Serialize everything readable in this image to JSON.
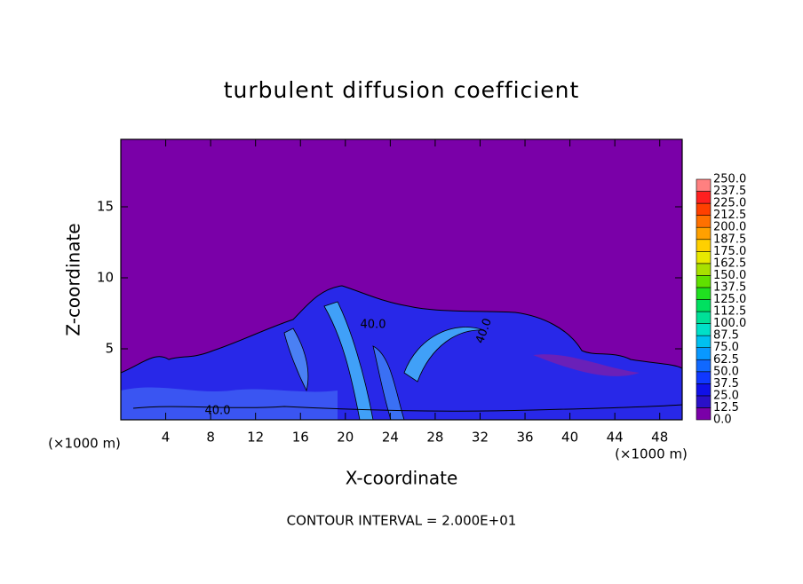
{
  "chart_data": {
    "type": "contour",
    "title": "turbulent diffusion coefficient",
    "xlabel": "X-coordinate",
    "ylabel": "Z-coordinate",
    "x_unit": "(×1000 m)",
    "footnote": "CONTOUR INTERVAL = 2.000E+01",
    "xlim": [
      0,
      50
    ],
    "ylim": [
      0,
      19.75
    ],
    "xticks": [
      4,
      8,
      12,
      16,
      20,
      24,
      28,
      32,
      36,
      40,
      44,
      48
    ],
    "yticks": [
      5,
      10,
      15
    ],
    "contour_labels": [
      "40.0",
      "40.0",
      "40.0"
    ],
    "colorbar": {
      "levels": [
        {
          "value": 0,
          "label": "0.0"
        },
        {
          "value": 12.5,
          "label": "12.5"
        },
        {
          "value": 25,
          "label": "25.0"
        },
        {
          "value": 37.5,
          "label": "37.5"
        },
        {
          "value": 50,
          "label": "50.0"
        },
        {
          "value": 62.5,
          "label": "62.5"
        },
        {
          "value": 75,
          "label": "75.0"
        },
        {
          "value": 87.5,
          "label": "87.5"
        },
        {
          "value": 100,
          "label": "100.0"
        },
        {
          "value": 112.5,
          "label": "112.5"
        },
        {
          "value": 125,
          "label": "125.0"
        },
        {
          "value": 137.5,
          "label": "137.5"
        },
        {
          "value": 150,
          "label": "150.0"
        },
        {
          "value": 162.5,
          "label": "162.5"
        },
        {
          "value": 175,
          "label": "175.0"
        },
        {
          "value": 187.5,
          "label": "187.5"
        },
        {
          "value": 200,
          "label": "200.0"
        },
        {
          "value": 212.5,
          "label": "212.5"
        },
        {
          "value": 225,
          "label": "225.0"
        },
        {
          "value": 237.5,
          "label": "237.5"
        },
        {
          "value": 250,
          "label": "250.0"
        }
      ],
      "colors": [
        "#7a00a8",
        "#2a10c8",
        "#1010e8",
        "#1038ff",
        "#1068ff",
        "#0898ff",
        "#00c0f0",
        "#00e0c8",
        "#00e098",
        "#00e060",
        "#20e020",
        "#60e000",
        "#a8e000",
        "#e8e800",
        "#ffd000",
        "#ffa000",
        "#ff7000",
        "#ff4000",
        "#ff2020",
        "#ff8080"
      ]
    }
  }
}
